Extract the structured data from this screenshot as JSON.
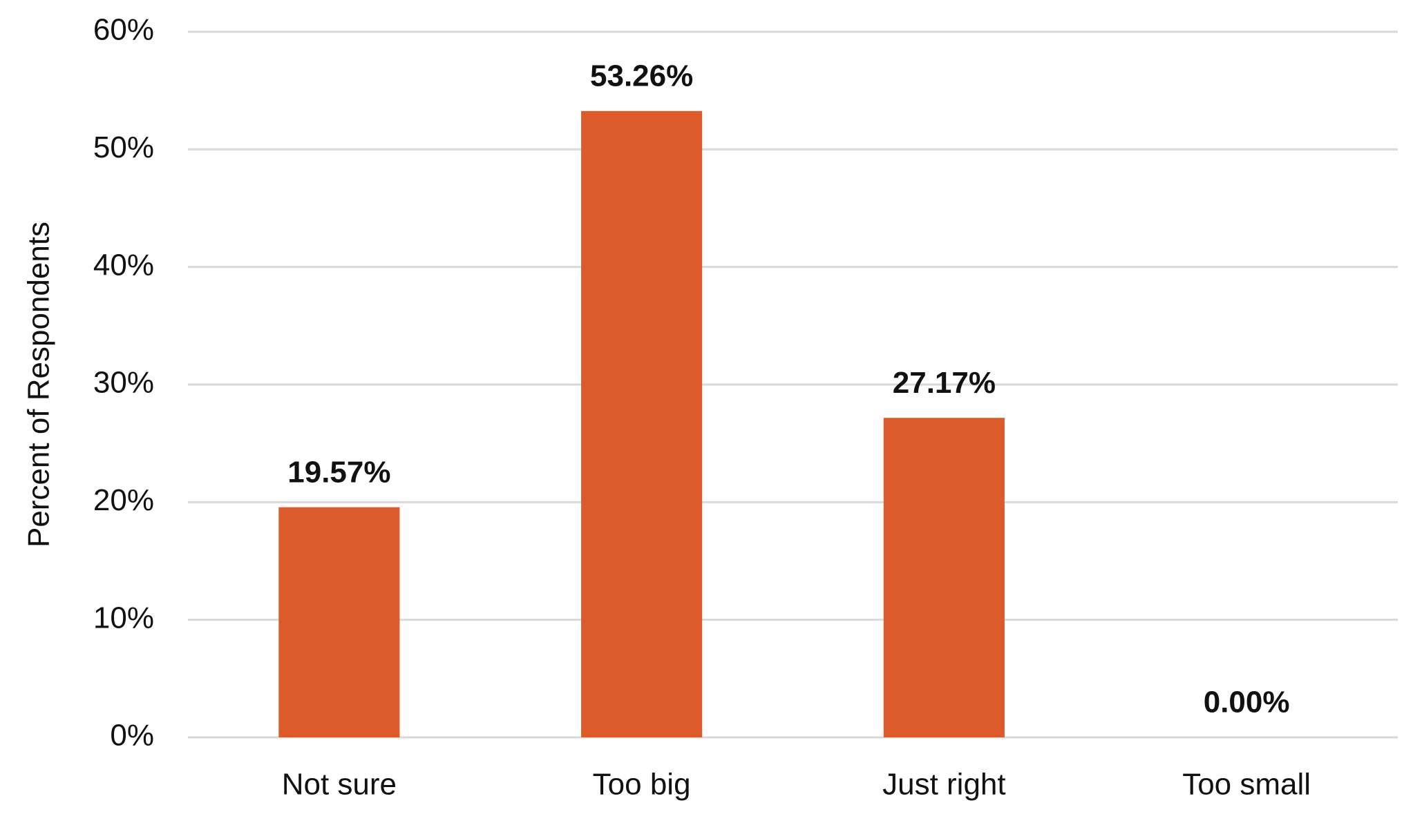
{
  "chart_data": {
    "type": "bar",
    "y_label": "Percent of Respondents",
    "categories": [
      "Not sure",
      "Too big",
      "Just right",
      "Too small"
    ],
    "values": [
      19.57,
      53.26,
      27.17,
      0.0
    ],
    "value_labels": [
      "19.57%",
      "53.26%",
      "27.17%",
      "0.00%"
    ],
    "color": "#dd5a2b",
    "ylim": [
      0,
      60
    ],
    "yticks": [
      {
        "value": 0,
        "label": "0%"
      },
      {
        "value": 10,
        "label": "10%"
      },
      {
        "value": 20,
        "label": "20%"
      },
      {
        "value": 30,
        "label": "30%"
      },
      {
        "value": 40,
        "label": "40%"
      },
      {
        "value": 50,
        "label": "50%"
      },
      {
        "value": 60,
        "label": "60%"
      }
    ],
    "grid": true
  }
}
